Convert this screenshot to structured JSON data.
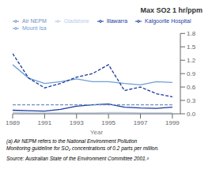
{
  "chart_data": {
    "type": "line",
    "title": "Max SO2 1 hr/ppm",
    "x_label": "Year",
    "x": [
      1989,
      1990,
      1991,
      1992,
      1993,
      1994,
      1995,
      1996,
      1997,
      1998,
      1999
    ],
    "series": [
      {
        "name": "Illawarra",
        "color": "#1a3a9f",
        "line_style": "solid",
        "values": [
          0.08,
          0.07,
          0.06,
          0.1,
          0.17,
          0.2,
          0.22,
          0.15,
          0.13,
          0.12,
          0.15
        ]
      },
      {
        "name": "Gladstone",
        "color": "#b8cce8",
        "line_style": "solid",
        "values": [
          0.03,
          0.02,
          0.02,
          0.02,
          0.02,
          0.02,
          0.03,
          0.03,
          0.02,
          0.02,
          0.02
        ]
      },
      {
        "name": "Mount Isa",
        "color": "#6e9fd4",
        "line_style": "solid",
        "values": [
          1.1,
          0.8,
          0.68,
          0.72,
          0.78,
          0.72,
          0.72,
          0.68,
          0.65,
          0.72,
          0.7
        ]
      },
      {
        "name": "Kalgoorlie Hospital",
        "color": "#1a3a9f",
        "line_style": "dashed",
        "values": [
          1.35,
          0.8,
          0.58,
          0.68,
          0.82,
          0.9,
          1.1,
          0.52,
          0.6,
          0.45,
          0.38
        ]
      },
      {
        "name": "Air NEPM",
        "color": "#7090c0",
        "line_style": "dashed",
        "values": [
          0.2,
          0.2,
          0.2,
          0.2,
          0.2,
          0.2,
          0.2,
          0.2,
          0.2,
          0.2,
          0.2
        ]
      }
    ],
    "xlim": [
      1989,
      1999.5
    ],
    "xticks": [
      1989,
      1991,
      1993,
      1995,
      1997,
      1999
    ],
    "ylim": [
      0.0,
      1.8
    ],
    "yticks": [
      {
        "value": 0.0,
        "label": "0.0"
      },
      0.3,
      0.6,
      0.9,
      1.2,
      1.5,
      1.8
    ],
    "legend": "upper left",
    "grid": false,
    "annotations": [
      "(a) Air NEPM refers to the National Environment Pollution",
      "Monitoring guideline for SO₂ concentrations of 0.2 parts per million.",
      "Source: Australian State of the Environment Committee 2001.³"
    ]
  }
}
